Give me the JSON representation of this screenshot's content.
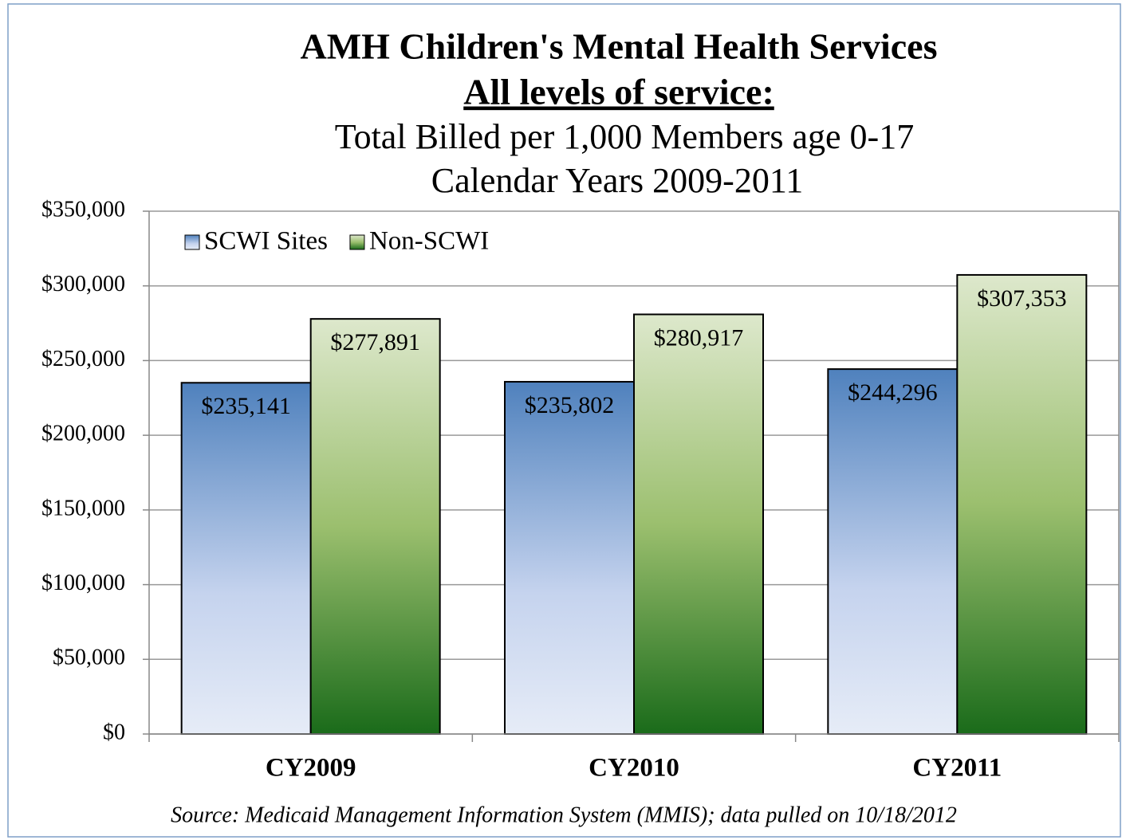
{
  "chart_data": {
    "type": "bar",
    "title": "AMH Children's Mental Health Services",
    "subtitle": "All levels of service:",
    "subtitle2": "Total Billed per 1,000 Members age 0-17",
    "subtitle3": "Calendar Years 2009-2011",
    "source": "Source: Medicaid Management Information System (MMIS); data pulled on 10/18/2012",
    "categories": [
      "CY2009",
      "CY2010",
      "CY2011"
    ],
    "series": [
      {
        "name": "SCWI Sites",
        "color": "#4f81bd",
        "values": [
          235141,
          235802,
          244296
        ],
        "value_labels": [
          "$235,141",
          "$235,802",
          "$244,296"
        ]
      },
      {
        "name": "Non-SCWI",
        "color": "#1a6b1a",
        "values": [
          277891,
          280917,
          307353
        ],
        "value_labels": [
          "$277,891",
          "$280,917",
          "$307,353"
        ]
      }
    ],
    "ylim": [
      0,
      350000
    ],
    "yticks": [
      {
        "value": 0,
        "label": "$0"
      },
      {
        "value": 50000,
        "label": "$50,000"
      },
      {
        "value": 100000,
        "label": "$100,000"
      },
      {
        "value": 150000,
        "label": "$150,000"
      },
      {
        "value": 200000,
        "label": "$200,000"
      },
      {
        "value": 250000,
        "label": "$250,000"
      },
      {
        "value": 300000,
        "label": "$300,000"
      },
      {
        "value": 350000,
        "label": "$350,000"
      }
    ],
    "grid": true,
    "legend": "upper left"
  }
}
